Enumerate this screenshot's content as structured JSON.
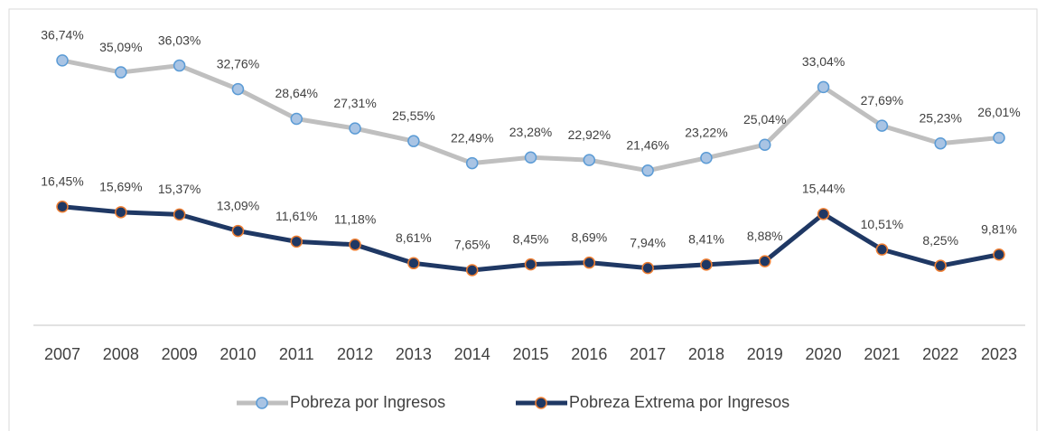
{
  "chart_data": {
    "type": "line",
    "categories": [
      "2007",
      "2008",
      "2009",
      "2010",
      "2011",
      "2012",
      "2013",
      "2014",
      "2015",
      "2016",
      "2017",
      "2018",
      "2019",
      "2020",
      "2021",
      "2022",
      "2023"
    ],
    "series": [
      {
        "name": "Pobreza por Ingresos",
        "color": "#bfbfbf",
        "marker_fill": "#a9c4e4",
        "marker_stroke": "#5b9bd5",
        "values": [
          36.74,
          35.09,
          36.03,
          32.76,
          28.64,
          27.31,
          25.55,
          22.49,
          23.28,
          22.92,
          21.46,
          23.22,
          25.04,
          33.04,
          27.69,
          25.23,
          26.01
        ],
        "value_labels": [
          "36,74%",
          "35,09%",
          "36,03%",
          "32,76%",
          "28,64%",
          "27,31%",
          "25,55%",
          "22,49%",
          "23,28%",
          "22,92%",
          "21,46%",
          "23,22%",
          "25,04%",
          "33,04%",
          "27,69%",
          "25,23%",
          "26,01%"
        ]
      },
      {
        "name": "Pobreza Extrema por Ingresos",
        "color": "#1f3864",
        "marker_fill": "#1f3864",
        "marker_stroke": "#ed7d31",
        "values": [
          16.45,
          15.69,
          15.37,
          13.09,
          11.61,
          11.18,
          8.61,
          7.65,
          8.45,
          8.69,
          7.94,
          8.41,
          8.88,
          15.44,
          10.51,
          8.25,
          9.81
        ],
        "value_labels": [
          "16,45%",
          "15,69%",
          "15,37%",
          "13,09%",
          "11,61%",
          "11,18%",
          "8,61%",
          "7,65%",
          "8,45%",
          "8,69%",
          "7,94%",
          "8,41%",
          "8,88%",
          "15,44%",
          "10,51%",
          "8,25%",
          "9,81%"
        ]
      }
    ],
    "ylim": [
      0,
      45
    ],
    "legend": "bottom"
  }
}
